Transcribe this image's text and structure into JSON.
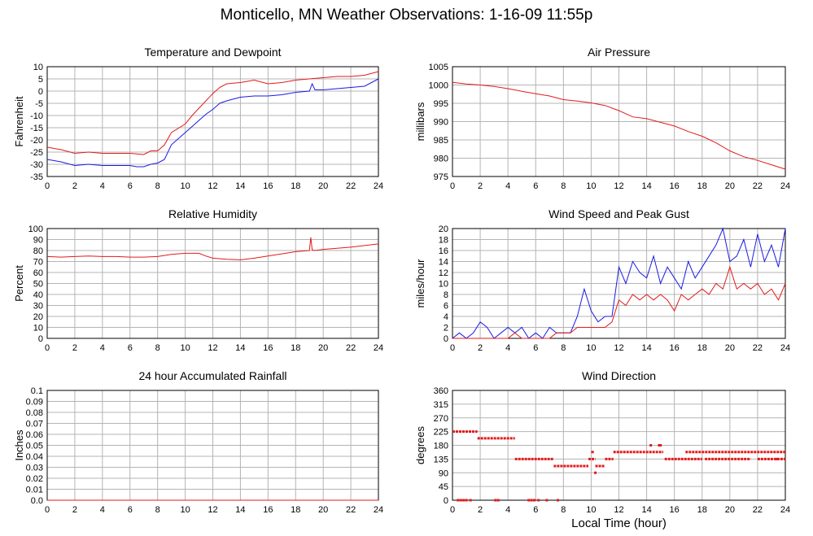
{
  "title": "Monticello, MN Weather Observations: 1-16-09 11:55p",
  "xlabel_bottom": "Local Time (hour)",
  "colors": {
    "red": "#e41a1a",
    "blue": "#1a1ae6",
    "grid": "#b4b4b4"
  },
  "chart_data": [
    {
      "id": "temp",
      "type": "line",
      "title": "Temperature and Dewpoint",
      "ylabel": "Fahrenheit",
      "xlim": [
        0,
        24
      ],
      "ylim": [
        -35,
        10
      ],
      "xticks": [
        0,
        2,
        4,
        6,
        8,
        10,
        12,
        14,
        16,
        18,
        20,
        22,
        24
      ],
      "yticks": [
        -35,
        -30,
        -25,
        -20,
        -15,
        -10,
        -5,
        0,
        5,
        10
      ],
      "ytick_labels": [
        "-35",
        "-30",
        "-25",
        "-20",
        "-15",
        "-10",
        "-5",
        "0",
        "5",
        "10"
      ],
      "grid": true,
      "series": [
        {
          "color": "red",
          "x": [
            0,
            1,
            2,
            3,
            4,
            5,
            6,
            7,
            7.5,
            8,
            8.5,
            9,
            10,
            10.5,
            11,
            11.5,
            12,
            12.5,
            13,
            14,
            15,
            16,
            17,
            18,
            19,
            20,
            21,
            22,
            23,
            24
          ],
          "y": [
            -23,
            -24,
            -25.5,
            -25,
            -25.5,
            -25.5,
            -25.5,
            -26,
            -24.5,
            -24.5,
            -22,
            -17,
            -13.5,
            -10,
            -7,
            -4,
            -1,
            1.5,
            3,
            3.5,
            4.5,
            3,
            3.5,
            4.5,
            5,
            5.5,
            6,
            6,
            6.5,
            8
          ]
        },
        {
          "color": "blue",
          "x": [
            0,
            1,
            2,
            3,
            4,
            5,
            6,
            6.5,
            7,
            7.5,
            8,
            8.5,
            9,
            10,
            10.5,
            11,
            11.5,
            12,
            12.5,
            13,
            14,
            15,
            16,
            17,
            18,
            19,
            19.2,
            19.4,
            20,
            21,
            22,
            23,
            24
          ],
          "y": [
            -28,
            -29,
            -30.5,
            -30,
            -30.5,
            -30.5,
            -30.5,
            -31,
            -31,
            -30,
            -29.5,
            -28,
            -22,
            -17,
            -14.5,
            -12,
            -9.5,
            -7.5,
            -5,
            -4,
            -2.5,
            -2,
            -2,
            -1.5,
            -0.5,
            0,
            3,
            0.5,
            0.5,
            1,
            1.5,
            2,
            5
          ]
        }
      ]
    },
    {
      "id": "pressure",
      "type": "line",
      "title": "Air Pressure",
      "ylabel": "millibars",
      "xlim": [
        0,
        24
      ],
      "ylim": [
        975,
        1005
      ],
      "xticks": [
        0,
        2,
        4,
        6,
        8,
        10,
        12,
        14,
        16,
        18,
        20,
        22,
        24
      ],
      "yticks": [
        975,
        980,
        985,
        990,
        995,
        1000,
        1005
      ],
      "ytick_labels": [
        "975",
        "980",
        "985",
        "990",
        "995",
        "1000",
        "1005"
      ],
      "grid": true,
      "series": [
        {
          "color": "red",
          "x": [
            0,
            1,
            2,
            3,
            4,
            5,
            6,
            7,
            8,
            9,
            10,
            11,
            12,
            13,
            14,
            15,
            16,
            17,
            18,
            19,
            20,
            21,
            22,
            23,
            24
          ],
          "y": [
            1000.7,
            1000.3,
            1000,
            999.6,
            999,
            998.3,
            997.6,
            997,
            996,
            995.6,
            995.1,
            994.4,
            993,
            991.3,
            990.8,
            989.8,
            988.8,
            987.3,
            986,
            984.2,
            982,
            980.4,
            979.4,
            978.2,
            977
          ]
        }
      ]
    },
    {
      "id": "humidity",
      "type": "line",
      "title": "Relative Humidity",
      "ylabel": "Percent",
      "xlim": [
        0,
        24
      ],
      "ylim": [
        0,
        100
      ],
      "xticks": [
        0,
        2,
        4,
        6,
        8,
        10,
        12,
        14,
        16,
        18,
        20,
        22,
        24
      ],
      "yticks": [
        0,
        10,
        20,
        30,
        40,
        50,
        60,
        70,
        80,
        90,
        100
      ],
      "ytick_labels": [
        "0",
        "10",
        "20",
        "30",
        "40",
        "50",
        "60",
        "70",
        "80",
        "90",
        "100"
      ],
      "grid": true,
      "series": [
        {
          "color": "red",
          "x": [
            0,
            1,
            2,
            3,
            4,
            5,
            6,
            7,
            8,
            9,
            10,
            11,
            11.5,
            12,
            13,
            14,
            15,
            16,
            17,
            18,
            19,
            19.1,
            19.2,
            19.4,
            20,
            21,
            22,
            23,
            24
          ],
          "y": [
            74.5,
            74,
            74.5,
            75,
            74.5,
            74.5,
            74,
            74,
            74.5,
            76.5,
            77.5,
            77.5,
            75,
            73,
            72,
            71.5,
            73,
            75,
            77,
            79,
            80,
            92,
            80.5,
            80,
            81,
            82,
            83,
            84.5,
            86
          ]
        }
      ]
    },
    {
      "id": "wind",
      "type": "line",
      "title": "Wind Speed and Peak Gust",
      "ylabel": "miles/hour",
      "xlim": [
        0,
        24
      ],
      "ylim": [
        0,
        20
      ],
      "xticks": [
        0,
        2,
        4,
        6,
        8,
        10,
        12,
        14,
        16,
        18,
        20,
        22,
        24
      ],
      "yticks": [
        0,
        2,
        4,
        6,
        8,
        10,
        12,
        14,
        16,
        18,
        20
      ],
      "ytick_labels": [
        "0",
        "2",
        "4",
        "6",
        "8",
        "10",
        "12",
        "14",
        "16",
        "18",
        "20"
      ],
      "grid": true,
      "series": [
        {
          "color": "blue",
          "x": [
            0,
            0.5,
            1,
            1.5,
            2,
            2.5,
            3,
            3.5,
            4,
            4.5,
            5,
            5.5,
            6,
            6.5,
            7,
            7.5,
            8,
            8.5,
            9,
            9.5,
            10,
            10.5,
            11,
            11.5,
            12,
            12.5,
            13,
            13.5,
            14,
            14.5,
            15,
            15.5,
            16,
            16.5,
            17,
            17.5,
            18,
            18.5,
            19,
            19.5,
            20,
            20.5,
            21,
            21.5,
            22,
            22.5,
            23,
            23.5,
            24
          ],
          "y": [
            0,
            1,
            0,
            1,
            3,
            2,
            0,
            1,
            2,
            1,
            2,
            0,
            1,
            0,
            2,
            1,
            1,
            1,
            4,
            9,
            5,
            3,
            4,
            4,
            13,
            10,
            14,
            12,
            11,
            15,
            10,
            13,
            11,
            9,
            14,
            11,
            13,
            15,
            17,
            20,
            14,
            15,
            18,
            13,
            19,
            14,
            17,
            13,
            20
          ]
        },
        {
          "color": "red",
          "x": [
            0,
            1,
            2,
            3,
            4,
            4.5,
            5,
            5.5,
            6,
            6.5,
            7,
            7.5,
            8,
            8.5,
            9,
            9.5,
            10,
            10.5,
            11,
            11.5,
            12,
            12.5,
            13,
            13.5,
            14,
            14.5,
            15,
            15.5,
            16,
            16.5,
            17,
            17.5,
            18,
            18.5,
            19,
            19.5,
            20,
            20.5,
            21,
            21.5,
            22,
            22.5,
            23,
            23.5,
            24
          ],
          "y": [
            0,
            0,
            0,
            0,
            0,
            1,
            0,
            0,
            0,
            0,
            0,
            1,
            1,
            1,
            2,
            2,
            2,
            2,
            2,
            3,
            7,
            6,
            8,
            7,
            8,
            7,
            8,
            7,
            5,
            8,
            7,
            8,
            9,
            8,
            10,
            9,
            13,
            9,
            10,
            9,
            10,
            8,
            9,
            7,
            10
          ]
        }
      ]
    },
    {
      "id": "rain",
      "type": "line",
      "title": "24 hour Accumulated Rainfall",
      "ylabel": "Inches",
      "xlim": [
        0,
        24
      ],
      "ylim": [
        0,
        0.1
      ],
      "xticks": [
        0,
        2,
        4,
        6,
        8,
        10,
        12,
        14,
        16,
        18,
        20,
        22,
        24
      ],
      "yticks": [
        0,
        0.01,
        0.02,
        0.03,
        0.04,
        0.05,
        0.06,
        0.07,
        0.08,
        0.09,
        0.1
      ],
      "ytick_labels": [
        "0.0",
        "0.01",
        "0.02",
        "0.03",
        "0.04",
        "0.05",
        "0.06",
        "0.07",
        "0.08",
        "0.09",
        "0.1"
      ],
      "grid": true,
      "series": [
        {
          "color": "red",
          "x": [
            0,
            24
          ],
          "y": [
            0,
            0
          ]
        }
      ]
    },
    {
      "id": "direction",
      "type": "scatter",
      "title": "Wind Direction",
      "ylabel": "degrees",
      "xlim": [
        0,
        24
      ],
      "ylim": [
        0,
        360
      ],
      "xticks": [
        0,
        2,
        4,
        6,
        8,
        10,
        12,
        14,
        16,
        18,
        20,
        22,
        24
      ],
      "yticks": [
        0,
        45,
        90,
        135,
        180,
        225,
        270,
        315,
        360
      ],
      "ytick_labels": [
        "0",
        "45",
        "90",
        "135",
        "180",
        "225",
        "270",
        "315",
        "360"
      ],
      "grid": true,
      "segments": [
        {
          "x": [
            0,
            1.8
          ],
          "y": 225
        },
        {
          "x": [
            1.8,
            4.5
          ],
          "y": 203
        },
        {
          "x": [
            4.5,
            7.3
          ],
          "y": 135
        },
        {
          "x": [
            7.3,
            9.8
          ],
          "y": 112
        },
        {
          "x": [
            9.8,
            10.3
          ],
          "y": 135
        },
        {
          "x": [
            10.3,
            11.0
          ],
          "y": 112
        },
        {
          "x": [
            11.0,
            11.6
          ],
          "y": 135
        },
        {
          "x": [
            11.6,
            15.2
          ],
          "y": 158
        },
        {
          "x": [
            15.3,
            18.0
          ],
          "y": 135
        },
        {
          "x": [
            16.8,
            24.0
          ],
          "y": 158
        },
        {
          "x": [
            18.2,
            21.5
          ],
          "y": 135
        },
        {
          "x": [
            22.0,
            24.0
          ],
          "y": 135
        }
      ],
      "points": [
        {
          "x": 0.4,
          "y": 0
        },
        {
          "x": 0.6,
          "y": 0
        },
        {
          "x": 0.8,
          "y": 0
        },
        {
          "x": 1.0,
          "y": 0
        },
        {
          "x": 1.3,
          "y": 0
        },
        {
          "x": 3.1,
          "y": 0
        },
        {
          "x": 3.3,
          "y": 0
        },
        {
          "x": 5.5,
          "y": 0
        },
        {
          "x": 5.7,
          "y": 0
        },
        {
          "x": 5.9,
          "y": 0
        },
        {
          "x": 6.2,
          "y": 0
        },
        {
          "x": 6.8,
          "y": 0
        },
        {
          "x": 7.6,
          "y": 0
        },
        {
          "x": 10.1,
          "y": 158
        },
        {
          "x": 10.3,
          "y": 90
        },
        {
          "x": 14.3,
          "y": 180
        },
        {
          "x": 14.9,
          "y": 180
        },
        {
          "x": 15.0,
          "y": 180
        },
        {
          "x": 23.4,
          "y": 135
        }
      ]
    }
  ]
}
